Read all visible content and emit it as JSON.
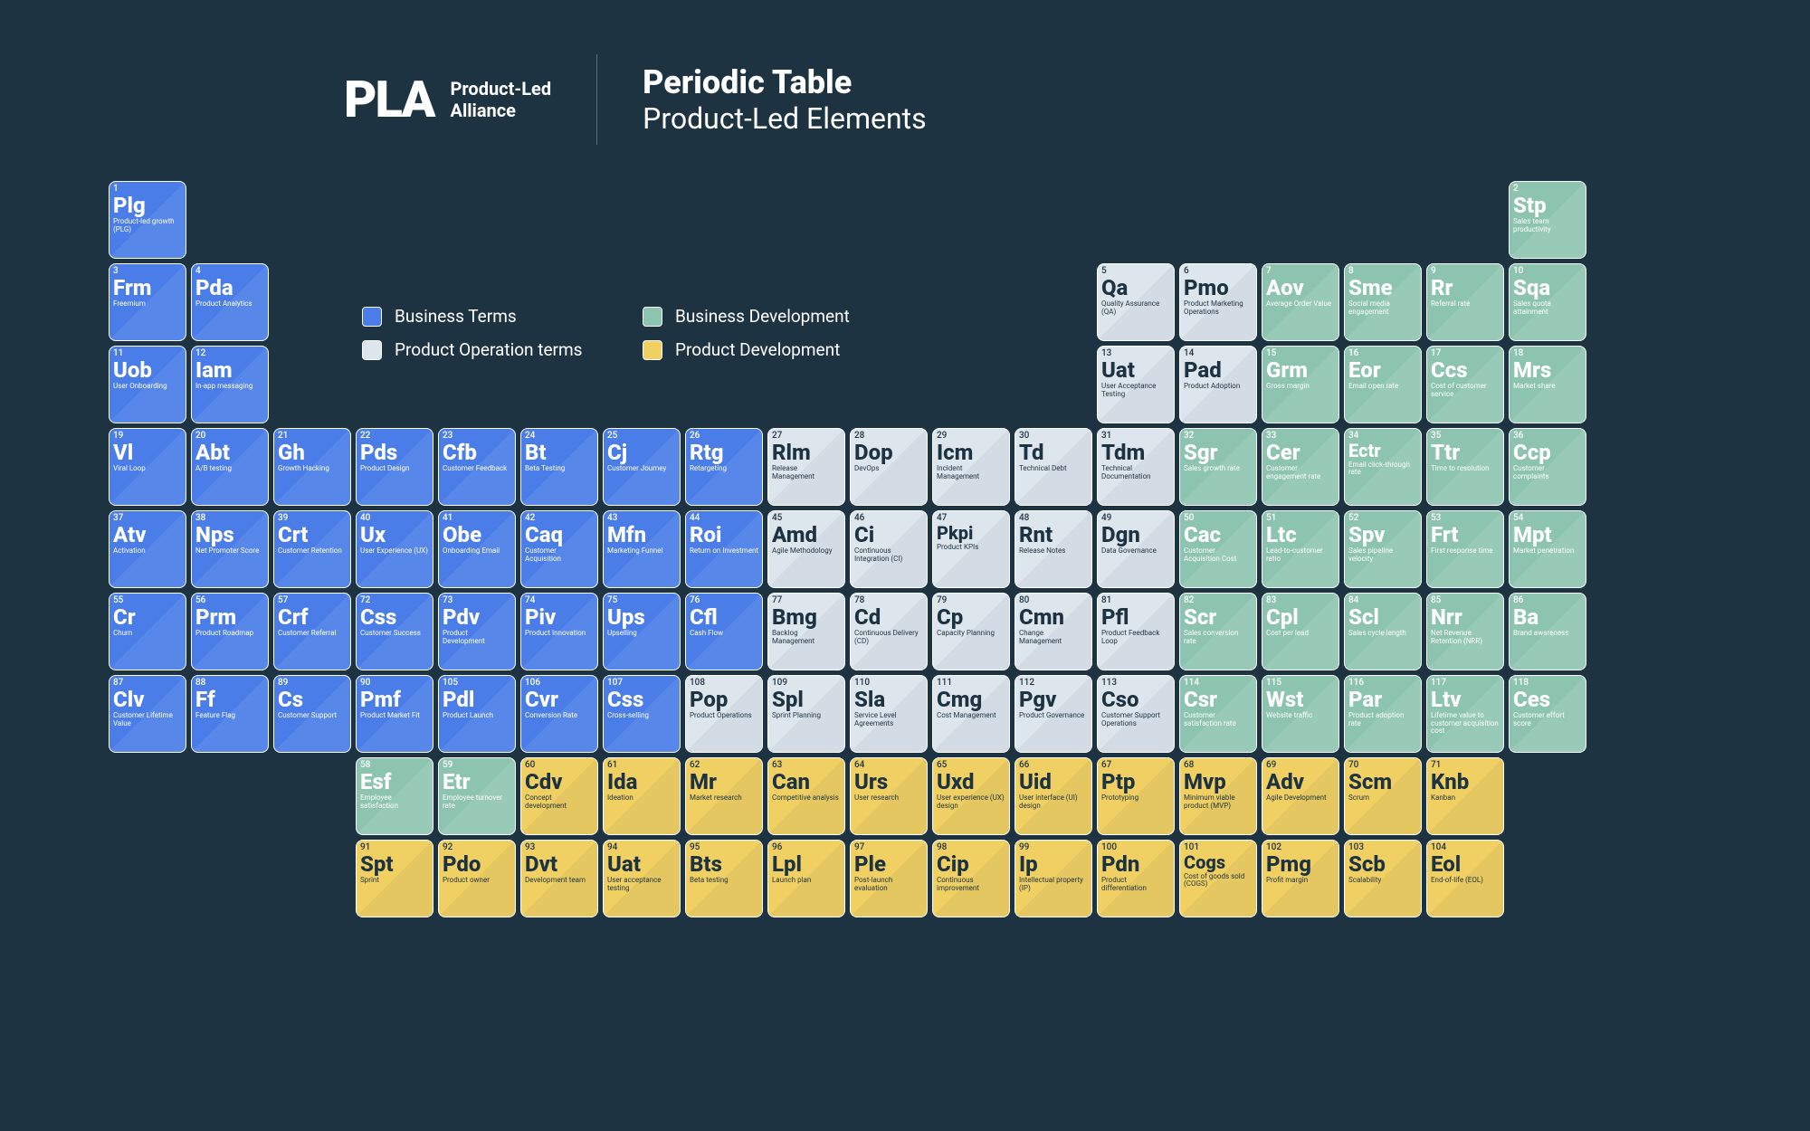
{
  "brand": {
    "logo": "PLA",
    "sub1": "Product-Led",
    "sub2": "Alliance"
  },
  "title": {
    "main": "Periodic Table",
    "sub": "Product-Led Elements"
  },
  "colors": {
    "blue": "#4a7de8",
    "gray": "#dde5ed",
    "green": "#8dc4b0",
    "yellow": "#f0d062",
    "bg": "#1e3342"
  },
  "legend": [
    {
      "label": "Business Terms",
      "color": "blue"
    },
    {
      "label": "Business Development",
      "color": "green"
    },
    {
      "label": "Product Operation terms",
      "color": "gray"
    },
    {
      "label": "Product Development",
      "color": "yellow"
    }
  ],
  "elements": [
    {
      "n": 1,
      "sym": "Plg",
      "desc": "Product-led growth (PLG)",
      "cat": "blue",
      "row": 1,
      "col": 1
    },
    {
      "n": 2,
      "sym": "Stp",
      "desc": "Sales team productivity",
      "cat": "green",
      "row": 1,
      "col": 18
    },
    {
      "n": 3,
      "sym": "Frm",
      "desc": "Freemium",
      "cat": "blue",
      "row": 2,
      "col": 1
    },
    {
      "n": 4,
      "sym": "Pda",
      "desc": "Product Analytics",
      "cat": "blue",
      "row": 2,
      "col": 2
    },
    {
      "n": 5,
      "sym": "Qa",
      "desc": "Quality Assurance (QA)",
      "cat": "gray",
      "row": 2,
      "col": 13
    },
    {
      "n": 6,
      "sym": "Pmo",
      "desc": "Product Marketing Operations",
      "cat": "gray",
      "row": 2,
      "col": 14
    },
    {
      "n": 7,
      "sym": "Aov",
      "desc": "Average Order Value",
      "cat": "green",
      "row": 2,
      "col": 15
    },
    {
      "n": 8,
      "sym": "Sme",
      "desc": "Social media engagement",
      "cat": "green",
      "row": 2,
      "col": 16
    },
    {
      "n": 9,
      "sym": "Rr",
      "desc": "Referral rate",
      "cat": "green",
      "row": 2,
      "col": 17
    },
    {
      "n": 10,
      "sym": "Sqa",
      "desc": "Sales quota attainment",
      "cat": "green",
      "row": 2,
      "col": 18
    },
    {
      "n": 11,
      "sym": "Uob",
      "desc": "User Onboarding",
      "cat": "blue",
      "row": 3,
      "col": 1
    },
    {
      "n": 12,
      "sym": "Iam",
      "desc": "In-app messaging",
      "cat": "blue",
      "row": 3,
      "col": 2
    },
    {
      "n": 13,
      "sym": "Uat",
      "desc": "User Acceptance Testing",
      "cat": "gray",
      "row": 3,
      "col": 13
    },
    {
      "n": 14,
      "sym": "Pad",
      "desc": "Product Adoption",
      "cat": "gray",
      "row": 3,
      "col": 14
    },
    {
      "n": 15,
      "sym": "Grm",
      "desc": "Gross margin",
      "cat": "green",
      "row": 3,
      "col": 15
    },
    {
      "n": 16,
      "sym": "Eor",
      "desc": "Email open rate",
      "cat": "green",
      "row": 3,
      "col": 16
    },
    {
      "n": 17,
      "sym": "Ccs",
      "desc": "Cost of customer service",
      "cat": "green",
      "row": 3,
      "col": 17
    },
    {
      "n": 18,
      "sym": "Mrs",
      "desc": "Market share",
      "cat": "green",
      "row": 3,
      "col": 18
    },
    {
      "n": 19,
      "sym": "Vl",
      "desc": "Viral Loop",
      "cat": "blue",
      "row": 4,
      "col": 1
    },
    {
      "n": 20,
      "sym": "Abt",
      "desc": "A/B testing",
      "cat": "blue",
      "row": 4,
      "col": 2
    },
    {
      "n": 21,
      "sym": "Gh",
      "desc": "Growth Hacking",
      "cat": "blue",
      "row": 4,
      "col": 3
    },
    {
      "n": 22,
      "sym": "Pds",
      "desc": "Product Design",
      "cat": "blue",
      "row": 4,
      "col": 4
    },
    {
      "n": 23,
      "sym": "Cfb",
      "desc": "Customer Feedback",
      "cat": "blue",
      "row": 4,
      "col": 5
    },
    {
      "n": 24,
      "sym": "Bt",
      "desc": "Beta Testing",
      "cat": "blue",
      "row": 4,
      "col": 6
    },
    {
      "n": 25,
      "sym": "Cj",
      "desc": "Customer Journey",
      "cat": "blue",
      "row": 4,
      "col": 7
    },
    {
      "n": 26,
      "sym": "Rtg",
      "desc": "Retargeting",
      "cat": "blue",
      "row": 4,
      "col": 8
    },
    {
      "n": 27,
      "sym": "Rlm",
      "desc": "Release Management",
      "cat": "gray",
      "row": 4,
      "col": 9
    },
    {
      "n": 28,
      "sym": "Dop",
      "desc": "DevOps",
      "cat": "gray",
      "row": 4,
      "col": 10
    },
    {
      "n": 29,
      "sym": "Icm",
      "desc": "Incident Management",
      "cat": "gray",
      "row": 4,
      "col": 11
    },
    {
      "n": 30,
      "sym": "Td",
      "desc": "Technical Debt",
      "cat": "gray",
      "row": 4,
      "col": 12
    },
    {
      "n": 31,
      "sym": "Tdm",
      "desc": "Technical Documentation",
      "cat": "gray",
      "row": 4,
      "col": 13
    },
    {
      "n": 32,
      "sym": "Sgr",
      "desc": "Sales growth rate",
      "cat": "green",
      "row": 4,
      "col": 14
    },
    {
      "n": 33,
      "sym": "Cer",
      "desc": "Customer engagement rate",
      "cat": "green",
      "row": 4,
      "col": 15
    },
    {
      "n": 34,
      "sym": "Ectr",
      "desc": "Email click-through rate",
      "cat": "green",
      "row": 4,
      "col": 16
    },
    {
      "n": 35,
      "sym": "Ttr",
      "desc": "Time to resolution",
      "cat": "green",
      "row": 4,
      "col": 17
    },
    {
      "n": 36,
      "sym": "Ccp",
      "desc": "Customer complaints",
      "cat": "green",
      "row": 4,
      "col": 18
    },
    {
      "n": 37,
      "sym": "Atv",
      "desc": "Activation",
      "cat": "blue",
      "row": 5,
      "col": 1
    },
    {
      "n": 38,
      "sym": "Nps",
      "desc": "Net Promoter Score",
      "cat": "blue",
      "row": 5,
      "col": 2
    },
    {
      "n": 39,
      "sym": "Crt",
      "desc": "Customer Retention",
      "cat": "blue",
      "row": 5,
      "col": 3
    },
    {
      "n": 40,
      "sym": "Ux",
      "desc": "User Experience (UX)",
      "cat": "blue",
      "row": 5,
      "col": 4
    },
    {
      "n": 41,
      "sym": "Obe",
      "desc": "Onboarding Email",
      "cat": "blue",
      "row": 5,
      "col": 5
    },
    {
      "n": 42,
      "sym": "Caq",
      "desc": "Customer Acquisition",
      "cat": "blue",
      "row": 5,
      "col": 6
    },
    {
      "n": 43,
      "sym": "Mfn",
      "desc": "Marketing Funnel",
      "cat": "blue",
      "row": 5,
      "col": 7
    },
    {
      "n": 44,
      "sym": "Roi",
      "desc": "Return on Investment",
      "cat": "blue",
      "row": 5,
      "col": 8
    },
    {
      "n": 45,
      "sym": "Amd",
      "desc": "Agile Methodology",
      "cat": "gray",
      "row": 5,
      "col": 9
    },
    {
      "n": 46,
      "sym": "Ci",
      "desc": "Continuous Integration (CI)",
      "cat": "gray",
      "row": 5,
      "col": 10
    },
    {
      "n": 47,
      "sym": "Pkpi",
      "desc": "Product KPIs",
      "cat": "gray",
      "row": 5,
      "col": 11
    },
    {
      "n": 48,
      "sym": "Rnt",
      "desc": "Release Notes",
      "cat": "gray",
      "row": 5,
      "col": 12
    },
    {
      "n": 49,
      "sym": "Dgn",
      "desc": "Data Governance",
      "cat": "gray",
      "row": 5,
      "col": 13
    },
    {
      "n": 50,
      "sym": "Cac",
      "desc": "Customer Acquisition Cost",
      "cat": "green",
      "row": 5,
      "col": 14
    },
    {
      "n": 51,
      "sym": "Ltc",
      "desc": "Lead-to-customer ratio",
      "cat": "green",
      "row": 5,
      "col": 15
    },
    {
      "n": 52,
      "sym": "Spv",
      "desc": "Sales pipeline velocity",
      "cat": "green",
      "row": 5,
      "col": 16
    },
    {
      "n": 53,
      "sym": "Frt",
      "desc": "First response time",
      "cat": "green",
      "row": 5,
      "col": 17
    },
    {
      "n": 54,
      "sym": "Mpt",
      "desc": "Market penetration",
      "cat": "green",
      "row": 5,
      "col": 18
    },
    {
      "n": 55,
      "sym": "Cr",
      "desc": "Churn",
      "cat": "blue",
      "row": 6,
      "col": 1
    },
    {
      "n": 56,
      "sym": "Prm",
      "desc": "Product Roadmap",
      "cat": "blue",
      "row": 6,
      "col": 2
    },
    {
      "n": 57,
      "sym": "Crf",
      "desc": "Customer Referral",
      "cat": "blue",
      "row": 6,
      "col": 3
    },
    {
      "n": 72,
      "sym": "Css",
      "desc": "Customer Success",
      "cat": "blue",
      "row": 6,
      "col": 4
    },
    {
      "n": 73,
      "sym": "Pdv",
      "desc": "Product Development",
      "cat": "blue",
      "row": 6,
      "col": 5
    },
    {
      "n": 74,
      "sym": "Piv",
      "desc": "Product Innovation",
      "cat": "blue",
      "row": 6,
      "col": 6
    },
    {
      "n": 75,
      "sym": "Ups",
      "desc": "Upselling",
      "cat": "blue",
      "row": 6,
      "col": 7
    },
    {
      "n": 76,
      "sym": "Cfl",
      "desc": "Cash Flow",
      "cat": "blue",
      "row": 6,
      "col": 8
    },
    {
      "n": 77,
      "sym": "Bmg",
      "desc": "Backlog Management",
      "cat": "gray",
      "row": 6,
      "col": 9
    },
    {
      "n": 78,
      "sym": "Cd",
      "desc": "Continuous Delivery (CD)",
      "cat": "gray",
      "row": 6,
      "col": 10
    },
    {
      "n": 79,
      "sym": "Cp",
      "desc": "Capacity Planning",
      "cat": "gray",
      "row": 6,
      "col": 11
    },
    {
      "n": 80,
      "sym": "Cmn",
      "desc": "Change Management",
      "cat": "gray",
      "row": 6,
      "col": 12
    },
    {
      "n": 81,
      "sym": "Pfl",
      "desc": "Product Feedback Loop",
      "cat": "gray",
      "row": 6,
      "col": 13
    },
    {
      "n": 82,
      "sym": "Scr",
      "desc": "Sales conversion rate",
      "cat": "green",
      "row": 6,
      "col": 14
    },
    {
      "n": 83,
      "sym": "Cpl",
      "desc": "Cost per lead",
      "cat": "green",
      "row": 6,
      "col": 15
    },
    {
      "n": 84,
      "sym": "Scl",
      "desc": "Sales cycle length",
      "cat": "green",
      "row": 6,
      "col": 16
    },
    {
      "n": 85,
      "sym": "Nrr",
      "desc": "Net Revenue Retention (NRR)",
      "cat": "green",
      "row": 6,
      "col": 17
    },
    {
      "n": 86,
      "sym": "Ba",
      "desc": "Brand awareness",
      "cat": "green",
      "row": 6,
      "col": 18
    },
    {
      "n": 87,
      "sym": "Clv",
      "desc": "Customer Lifetime Value",
      "cat": "blue",
      "row": 7,
      "col": 1
    },
    {
      "n": 88,
      "sym": "Ff",
      "desc": "Feature Flag",
      "cat": "blue",
      "row": 7,
      "col": 2
    },
    {
      "n": 89,
      "sym": "Cs",
      "desc": "Customer Support",
      "cat": "blue",
      "row": 7,
      "col": 3
    },
    {
      "n": 90,
      "sym": "Pmf",
      "desc": "Product Market Fit",
      "cat": "blue",
      "row": 7,
      "col": 4
    },
    {
      "n": 105,
      "sym": "Pdl",
      "desc": "Product Launch",
      "cat": "blue",
      "row": 7,
      "col": 5
    },
    {
      "n": 106,
      "sym": "Cvr",
      "desc": "Conversion Rate",
      "cat": "blue",
      "row": 7,
      "col": 6
    },
    {
      "n": 107,
      "sym": "Css",
      "desc": "Cross-selling",
      "cat": "blue",
      "row": 7,
      "col": 7
    },
    {
      "n": 108,
      "sym": "Pop",
      "desc": "Product Operations",
      "cat": "gray",
      "row": 7,
      "col": 8
    },
    {
      "n": 109,
      "sym": "Spl",
      "desc": "Sprint Planning",
      "cat": "gray",
      "row": 7,
      "col": 9
    },
    {
      "n": 110,
      "sym": "Sla",
      "desc": "Service Level Agreements",
      "cat": "gray",
      "row": 7,
      "col": 10
    },
    {
      "n": 111,
      "sym": "Cmg",
      "desc": "Cost Management",
      "cat": "gray",
      "row": 7,
      "col": 11
    },
    {
      "n": 112,
      "sym": "Pgv",
      "desc": "Product Governance",
      "cat": "gray",
      "row": 7,
      "col": 12
    },
    {
      "n": 113,
      "sym": "Cso",
      "desc": "Customer Support Operations",
      "cat": "gray",
      "row": 7,
      "col": 13
    },
    {
      "n": 114,
      "sym": "Csr",
      "desc": "Customer satisfaction rate",
      "cat": "green",
      "row": 7,
      "col": 14
    },
    {
      "n": 115,
      "sym": "Wst",
      "desc": "Website traffic",
      "cat": "green",
      "row": 7,
      "col": 15
    },
    {
      "n": 116,
      "sym": "Par",
      "desc": "Product adoption rate",
      "cat": "green",
      "row": 7,
      "col": 16
    },
    {
      "n": 117,
      "sym": "Ltv",
      "desc": "Lifetime value to customer acquisition cost",
      "cat": "green",
      "row": 7,
      "col": 17
    },
    {
      "n": 118,
      "sym": "Ces",
      "desc": "Customer effort score",
      "cat": "green",
      "row": 7,
      "col": 18
    },
    {
      "n": 58,
      "sym": "Esf",
      "desc": "Employee satisfaction",
      "cat": "green",
      "row": 8,
      "col": 4
    },
    {
      "n": 59,
      "sym": "Etr",
      "desc": "Employee turnover rate",
      "cat": "green",
      "row": 8,
      "col": 5
    },
    {
      "n": 60,
      "sym": "Cdv",
      "desc": "Concept development",
      "cat": "yellow",
      "row": 8,
      "col": 6
    },
    {
      "n": 61,
      "sym": "Ida",
      "desc": "Ideation",
      "cat": "yellow",
      "row": 8,
      "col": 7
    },
    {
      "n": 62,
      "sym": "Mr",
      "desc": "Market research",
      "cat": "yellow",
      "row": 8,
      "col": 8
    },
    {
      "n": 63,
      "sym": "Can",
      "desc": "Competitive analysis",
      "cat": "yellow",
      "row": 8,
      "col": 9
    },
    {
      "n": 64,
      "sym": "Urs",
      "desc": "User research",
      "cat": "yellow",
      "row": 8,
      "col": 10
    },
    {
      "n": 65,
      "sym": "Uxd",
      "desc": "User experience (UX) design",
      "cat": "yellow",
      "row": 8,
      "col": 11
    },
    {
      "n": 66,
      "sym": "Uid",
      "desc": "User interface (UI) design",
      "cat": "yellow",
      "row": 8,
      "col": 12
    },
    {
      "n": 67,
      "sym": "Ptp",
      "desc": "Prototyping",
      "cat": "yellow",
      "row": 8,
      "col": 13
    },
    {
      "n": 68,
      "sym": "Mvp",
      "desc": "Minimum viable product (MVP)",
      "cat": "yellow",
      "row": 8,
      "col": 14
    },
    {
      "n": 69,
      "sym": "Adv",
      "desc": "Agile Development",
      "cat": "yellow",
      "row": 8,
      "col": 15
    },
    {
      "n": 70,
      "sym": "Scm",
      "desc": "Scrum",
      "cat": "yellow",
      "row": 8,
      "col": 16
    },
    {
      "n": 71,
      "sym": "Knb",
      "desc": "Kanban",
      "cat": "yellow",
      "row": 8,
      "col": 17
    },
    {
      "n": 91,
      "sym": "Spt",
      "desc": "Sprint",
      "cat": "yellow",
      "row": 9,
      "col": 4
    },
    {
      "n": 92,
      "sym": "Pdo",
      "desc": "Product owner",
      "cat": "yellow",
      "row": 9,
      "col": 5
    },
    {
      "n": 93,
      "sym": "Dvt",
      "desc": "Development team",
      "cat": "yellow",
      "row": 9,
      "col": 6
    },
    {
      "n": 94,
      "sym": "Uat",
      "desc": "User acceptance testing",
      "cat": "yellow",
      "row": 9,
      "col": 7
    },
    {
      "n": 95,
      "sym": "Bts",
      "desc": "Beta testing",
      "cat": "yellow",
      "row": 9,
      "col": 8
    },
    {
      "n": 96,
      "sym": "Lpl",
      "desc": "Launch plan",
      "cat": "yellow",
      "row": 9,
      "col": 9
    },
    {
      "n": 97,
      "sym": "Ple",
      "desc": "Post-launch evaluation",
      "cat": "yellow",
      "row": 9,
      "col": 10
    },
    {
      "n": 98,
      "sym": "Cip",
      "desc": "Continuous improvement",
      "cat": "yellow",
      "row": 9,
      "col": 11
    },
    {
      "n": 99,
      "sym": "Ip",
      "desc": "Intellectual property (IP)",
      "cat": "yellow",
      "row": 9,
      "col": 12
    },
    {
      "n": 100,
      "sym": "Pdn",
      "desc": "Product differentiation",
      "cat": "yellow",
      "row": 9,
      "col": 13
    },
    {
      "n": 101,
      "sym": "Cogs",
      "desc": "Cost of goods sold (COGS)",
      "cat": "yellow",
      "row": 9,
      "col": 14
    },
    {
      "n": 102,
      "sym": "Pmg",
      "desc": "Profit margin",
      "cat": "yellow",
      "row": 9,
      "col": 15
    },
    {
      "n": 103,
      "sym": "Scb",
      "desc": "Scalability",
      "cat": "yellow",
      "row": 9,
      "col": 16
    },
    {
      "n": 104,
      "sym": "Eol",
      "desc": "End-of-life (EOL)",
      "cat": "yellow",
      "row": 9,
      "col": 17
    }
  ]
}
